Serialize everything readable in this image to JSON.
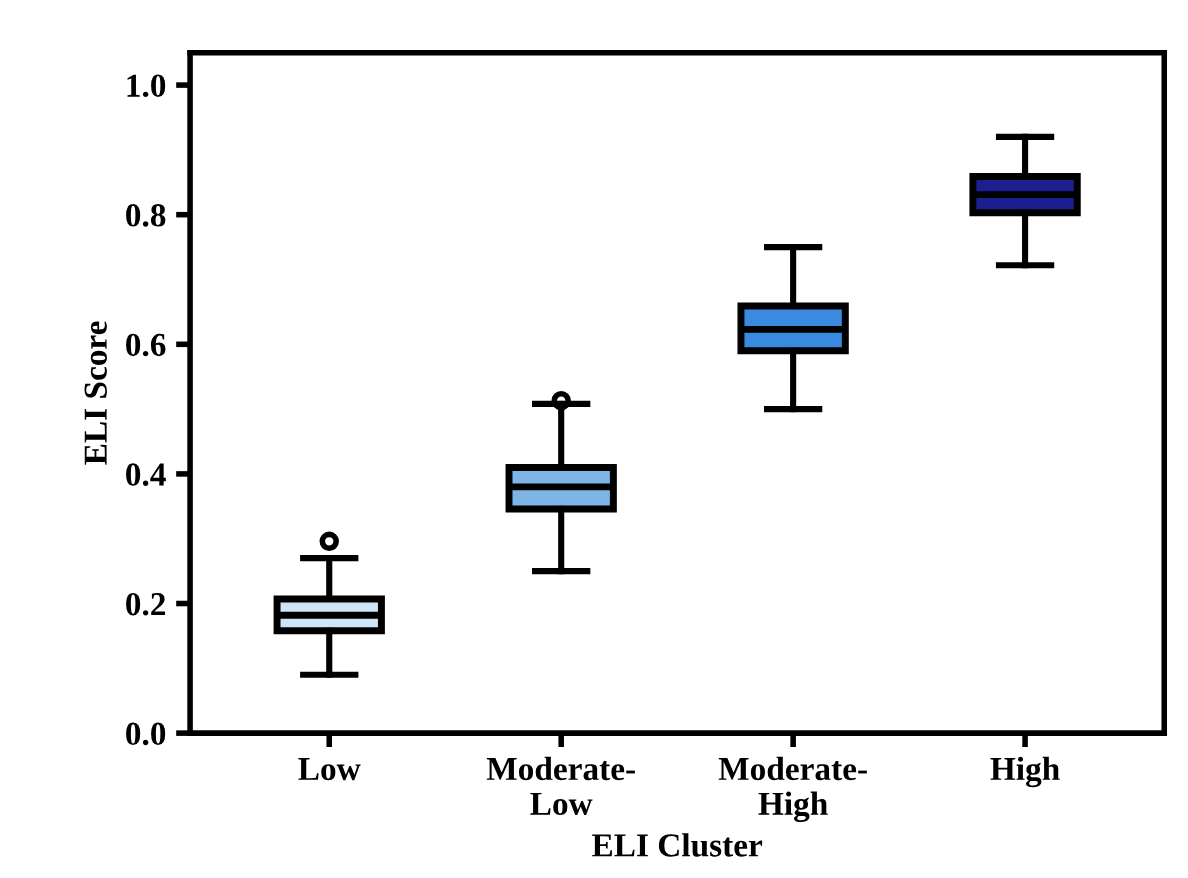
{
  "chart_data": {
    "type": "box",
    "xlabel": "ELI Cluster",
    "ylabel": "ELI Score",
    "categories": [
      "Low",
      "Moderate-\nLow",
      "Moderate-\nHigh",
      "High"
    ],
    "colors": [
      "#cfe5f5",
      "#7fb5e6",
      "#3a8ae0",
      "#1c1f8f"
    ],
    "boxes": [
      {
        "low": 0.09,
        "q1": 0.158,
        "median": 0.182,
        "q3": 0.207,
        "high": 0.27,
        "outliers": [
          0.296
        ]
      },
      {
        "low": 0.25,
        "q1": 0.346,
        "median": 0.38,
        "q3": 0.41,
        "high": 0.508,
        "outliers": [
          0.513
        ]
      },
      {
        "low": 0.5,
        "q1": 0.59,
        "median": 0.623,
        "q3": 0.659,
        "high": 0.75
      },
      {
        "low": 0.722,
        "q1": 0.803,
        "median": 0.831,
        "q3": 0.859,
        "high": 0.92
      }
    ],
    "ylim": [
      0,
      1.05
    ],
    "yticks": [
      {
        "value": 0,
        "label": "0.0"
      },
      0.2,
      0.4,
      0.6,
      0.8,
      {
        "value": 1,
        "label": "1.0"
      }
    ],
    "grid": false
  }
}
